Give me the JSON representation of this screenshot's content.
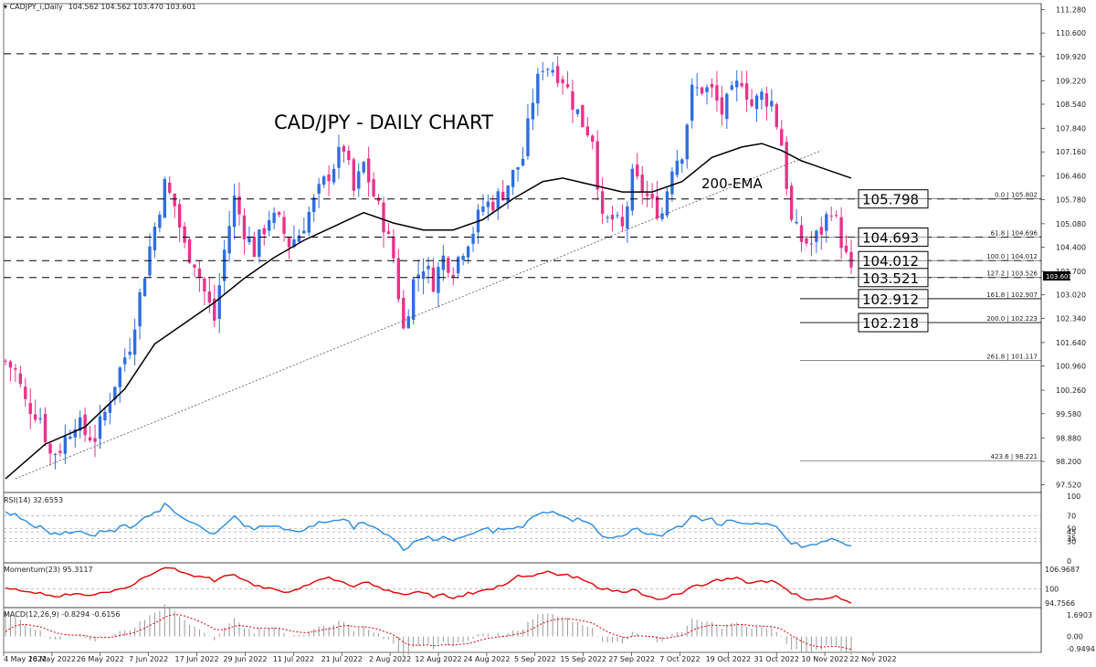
{
  "header": {
    "symbol_label": "CADJPY_i,Daily",
    "ohlc": "104.562 104.562 103.470 103.601"
  },
  "annotations": {
    "title": "CAD/JPY - DAILY CHART",
    "ema_label": "200-EMA"
  },
  "levels": [
    {
      "label": "105.798",
      "value": 105.798
    },
    {
      "label": "104.693",
      "value": 104.693
    },
    {
      "label": "104.012",
      "value": 104.012
    },
    {
      "label": "103.521",
      "value": 103.521
    },
    {
      "label": "102.912",
      "value": 102.912
    },
    {
      "label": "102.218",
      "value": 102.218
    }
  ],
  "fib_labels": [
    {
      "text": "0.0 | 105.802",
      "value": 105.802
    },
    {
      "text": "61.8 | 104.696",
      "value": 104.696
    },
    {
      "text": "100.0 | 104.012",
      "value": 104.012
    },
    {
      "text": "127.2 | 103.526",
      "value": 103.526
    },
    {
      "text": "161.8 | 102.907",
      "value": 102.907
    },
    {
      "text": "200.0 | 102.223",
      "value": 102.223
    },
    {
      "text": "261.8 | 101.117",
      "value": 101.117
    },
    {
      "text": "423.6 | 98.221",
      "value": 98.221
    }
  ],
  "current_price_label": "103.601",
  "panes": {
    "rsi_label": "RSI(14) 32.6553",
    "momentum_label": "Momentum(23) 95.3117",
    "macd_label": "MACD(12,26,9) -0.8294 -0.6156"
  },
  "chart_data": {
    "type": "candlestick",
    "title": "CAD/JPY - DAILY CHART",
    "price_axis": {
      "ticks": [
        "111.280",
        "110.600",
        "109.920",
        "109.220",
        "108.540",
        "107.840",
        "107.160",
        "106.460",
        "105.780",
        "105.080",
        "104.400",
        "103.700",
        "103.020",
        "102.340",
        "101.640",
        "100.960",
        "100.260",
        "99.580",
        "98.880",
        "98.200",
        "97.520"
      ],
      "range": [
        97.3,
        111.45
      ]
    },
    "x_ticks": [
      "4 May 2022",
      "16 May 2022",
      "26 May 2022",
      "7 Jun 2022",
      "17 Jun 2022",
      "29 Jun 2022",
      "11 Jul 2022",
      "21 Jul 2022",
      "2 Aug 2022",
      "12 Aug 2022",
      "24 Aug 2022",
      "5 Sep 2022",
      "15 Sep 2022",
      "27 Sep 2022",
      "7 Oct 2022",
      "19 Oct 2022",
      "31 Oct 2022",
      "10 Nov 2022",
      "22 Nov 2022"
    ],
    "close_path": [
      [
        0,
        101.1
      ],
      [
        2,
        100.8
      ],
      [
        4,
        99.9
      ],
      [
        7,
        99.5
      ],
      [
        9,
        98.4
      ],
      [
        11,
        98.6
      ],
      [
        14,
        99.4
      ],
      [
        16,
        99.0
      ],
      [
        18,
        98.9
      ],
      [
        20,
        99.6
      ],
      [
        22,
        100.5
      ],
      [
        25,
        101.6
      ],
      [
        27,
        103.0
      ],
      [
        29,
        104.4
      ],
      [
        32,
        106.2
      ],
      [
        34,
        105.6
      ],
      [
        36,
        104.4
      ],
      [
        38,
        104.0
      ],
      [
        40,
        103.1
      ],
      [
        42,
        102.3
      ],
      [
        44,
        104.3
      ],
      [
        46,
        105.8
      ],
      [
        48,
        104.9
      ],
      [
        50,
        104.3
      ],
      [
        53,
        105.3
      ],
      [
        55,
        105.1
      ],
      [
        57,
        104.5
      ],
      [
        59,
        104.8
      ],
      [
        61,
        105.4
      ],
      [
        63,
        106.0
      ],
      [
        66,
        106.8
      ],
      [
        68,
        107.3
      ],
      [
        70,
        106.0
      ],
      [
        72,
        106.8
      ],
      [
        74,
        105.9
      ],
      [
        76,
        105.1
      ],
      [
        78,
        104.1
      ],
      [
        80,
        102.0
      ],
      [
        82,
        103.4
      ],
      [
        84,
        103.9
      ],
      [
        86,
        103.4
      ],
      [
        88,
        104.1
      ],
      [
        90,
        103.8
      ],
      [
        92,
        104.4
      ],
      [
        94,
        104.9
      ],
      [
        96,
        105.6
      ],
      [
        98,
        105.7
      ],
      [
        100,
        106.0
      ],
      [
        102,
        106.5
      ],
      [
        104,
        107.0
      ],
      [
        106,
        108.7
      ],
      [
        108,
        109.7
      ],
      [
        110,
        109.6
      ],
      [
        112,
        109.3
      ],
      [
        114,
        108.6
      ],
      [
        116,
        108.0
      ],
      [
        118,
        107.6
      ],
      [
        120,
        105.1
      ],
      [
        122,
        105.2
      ],
      [
        124,
        104.9
      ],
      [
        126,
        106.4
      ],
      [
        128,
        106.1
      ],
      [
        130,
        105.6
      ],
      [
        132,
        105.4
      ],
      [
        134,
        106.8
      ],
      [
        136,
        107.2
      ],
      [
        138,
        108.9
      ],
      [
        140,
        109.0
      ],
      [
        142,
        108.9
      ],
      [
        144,
        108.3
      ],
      [
        146,
        108.8
      ],
      [
        148,
        109.3
      ],
      [
        150,
        108.5
      ],
      [
        152,
        108.8
      ],
      [
        154,
        108.6
      ],
      [
        156,
        107.4
      ],
      [
        158,
        105.1
      ],
      [
        160,
        104.6
      ],
      [
        162,
        104.5
      ],
      [
        164,
        104.9
      ],
      [
        166,
        105.6
      ],
      [
        168,
        104.6
      ],
      [
        170,
        103.6
      ]
    ],
    "ema_path": [
      [
        0,
        97.7
      ],
      [
        8,
        98.7
      ],
      [
        16,
        99.2
      ],
      [
        24,
        100.3
      ],
      [
        30,
        101.6
      ],
      [
        36,
        102.2
      ],
      [
        42,
        102.8
      ],
      [
        48,
        103.5
      ],
      [
        54,
        104.1
      ],
      [
        60,
        104.6
      ],
      [
        66,
        105.0
      ],
      [
        72,
        105.4
      ],
      [
        78,
        105.1
      ],
      [
        84,
        104.9
      ],
      [
        90,
        104.9
      ],
      [
        96,
        105.2
      ],
      [
        102,
        105.8
      ],
      [
        108,
        106.3
      ],
      [
        112,
        106.4
      ],
      [
        118,
        106.2
      ],
      [
        124,
        106.0
      ],
      [
        130,
        106.0
      ],
      [
        136,
        106.3
      ],
      [
        142,
        107.0
      ],
      [
        148,
        107.3
      ],
      [
        152,
        107.4
      ],
      [
        156,
        107.2
      ],
      [
        160,
        106.9
      ],
      [
        166,
        106.6
      ],
      [
        170,
        106.4
      ]
    ],
    "trendline": [
      [
        2,
        97.7
      ],
      [
        164,
        107.2
      ]
    ],
    "rsi": {
      "label": "RSI(14)",
      "value": 32.6553,
      "ticks": [
        "100",
        "70",
        "50",
        "45",
        "35",
        "30",
        "0"
      ]
    },
    "momentum": {
      "label": "Momentum(23)",
      "value": 95.3117,
      "ticks": [
        "106.9687",
        "100",
        "94.7566"
      ]
    },
    "macd": {
      "label": "MACD(12,26,9)",
      "main": -0.8294,
      "signal": -0.6156,
      "ticks": [
        "1.6903",
        "0.00",
        "-0.9494"
      ]
    }
  },
  "colors": {
    "bull": "#2f6ee0",
    "bear": "#e8338a",
    "ema": "#000000",
    "rsi": "#2a8be0",
    "momentum": "#e00000",
    "macd_signal": "#e00000"
  }
}
